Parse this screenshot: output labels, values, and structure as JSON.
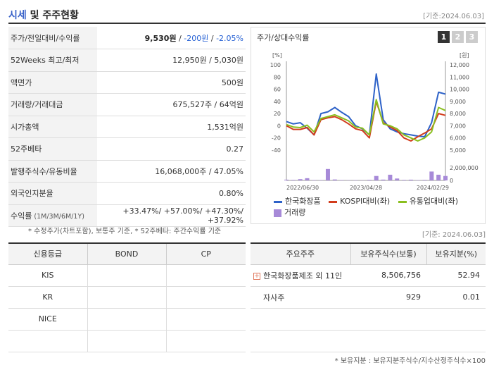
{
  "header": {
    "title_part1": "시세",
    "title_part2": " 및 주주현황",
    "base_date": "[기준:2024.06.03]"
  },
  "info_rows": [
    {
      "key": "주가/전일대비/수익률",
      "price": "9,530원",
      "sep1": " / ",
      "change": "-200원",
      "sep2": " / ",
      "rate": "-2.05%"
    },
    {
      "key": "52Weeks 최고/최저",
      "value": "12,950원 / 5,030원"
    },
    {
      "key": "액면가",
      "value": "500원"
    },
    {
      "key": "거래량/거래대금",
      "value": "675,527주 / 64억원"
    },
    {
      "key": "시가총액",
      "value": "1,531억원"
    },
    {
      "key": "52주베타",
      "value": "0.27"
    },
    {
      "key": "발행주식수/유동비율",
      "value": "16,068,000주 / 47.05%"
    },
    {
      "key": "외국인지분율",
      "value": "0.80%"
    },
    {
      "key": "수익률",
      "key_small": " (1M/3M/6M/1Y)",
      "value": "+33.47%/ +57.00%/ +47.30%/ +37.92%"
    }
  ],
  "note_left": "* 수정주가(차트포함), 보통주 기준, * 52주베타: 주간수익률 기준",
  "chart_panel": {
    "title": "주가/상대수익률",
    "tabs": [
      "1",
      "2",
      "3"
    ]
  },
  "chart_data": {
    "type": "line",
    "left_unit": "[%]",
    "right_unit": "[원]",
    "left_ticks": [
      "100",
      "80",
      "60",
      "40",
      "20",
      "0",
      "-20",
      "-40"
    ],
    "right_ticks": [
      "12,000",
      "11,000",
      "10,000",
      "9,000",
      "8,000",
      "7,000",
      "6,000",
      "5,000"
    ],
    "volume_ticks": [
      "2,000,000",
      "0"
    ],
    "x_ticks": [
      "2022/06/30",
      "2023/04/28",
      "2024/02/29"
    ],
    "ylim_left": [
      -40,
      100
    ],
    "ylim_volume": [
      0,
      2000000
    ],
    "n_points": 24,
    "series": [
      {
        "name": "한국화장품",
        "color": "#2e62c8",
        "values": [
          7,
          3,
          5,
          -4,
          -15,
          20,
          23,
          30,
          22,
          15,
          0,
          -5,
          -15,
          85,
          10,
          -5,
          -10,
          -13,
          -15,
          -17,
          -18,
          5,
          55,
          52
        ]
      },
      {
        "name": "KOSPI대비(좌)",
        "color": "#d23c1c",
        "values": [
          0,
          -6,
          -6,
          -3,
          -15,
          10,
          13,
          15,
          10,
          3,
          -5,
          -8,
          -20,
          40,
          5,
          -2,
          -8,
          -20,
          -25,
          -18,
          -12,
          -5,
          20,
          17
        ]
      },
      {
        "name": "유통업대비(좌)",
        "color": "#8abf1f",
        "values": [
          2,
          -2,
          -3,
          1,
          -10,
          12,
          15,
          18,
          13,
          8,
          -2,
          -4,
          -15,
          43,
          3,
          0,
          -5,
          -15,
          -20,
          -25,
          -20,
          -10,
          30,
          25
        ]
      }
    ],
    "volume": {
      "name": "거래량",
      "color": "#a78ad8",
      "values": [
        120000,
        80000,
        200000,
        350000,
        60000,
        50000,
        1800000,
        150000,
        60000,
        40000,
        50000,
        30000,
        90000,
        700000,
        130000,
        900000,
        300000,
        80000,
        120000,
        50000,
        80000,
        1400000,
        900000,
        700000
      ]
    }
  },
  "base_date_mid": "[기준: 2024.06.03]",
  "credit_table": {
    "headers": [
      "신용등급",
      "BOND",
      "CP"
    ],
    "rows": [
      {
        "agency": "KIS",
        "bond": "",
        "cp": ""
      },
      {
        "agency": "KR",
        "bond": "",
        "cp": ""
      },
      {
        "agency": "NICE",
        "bond": "",
        "cp": ""
      },
      {
        "agency": "",
        "bond": "",
        "cp": ""
      }
    ]
  },
  "holders_table": {
    "headers": [
      "주요주주",
      "보유주식수(보통)",
      "보유지분(%)"
    ],
    "rows": [
      {
        "name": "한국화장품제조 외 11인",
        "shares": "8,506,756",
        "pct": "52.94",
        "expandable": true
      },
      {
        "name": "자사주",
        "shares": "929",
        "pct": "0.01",
        "expandable": false
      },
      {
        "name": "",
        "shares": "",
        "pct": ""
      },
      {
        "name": "",
        "shares": "",
        "pct": ""
      }
    ]
  },
  "note_right": "* 보유지분 : 보유지분주식수/지수산정주식수×100"
}
